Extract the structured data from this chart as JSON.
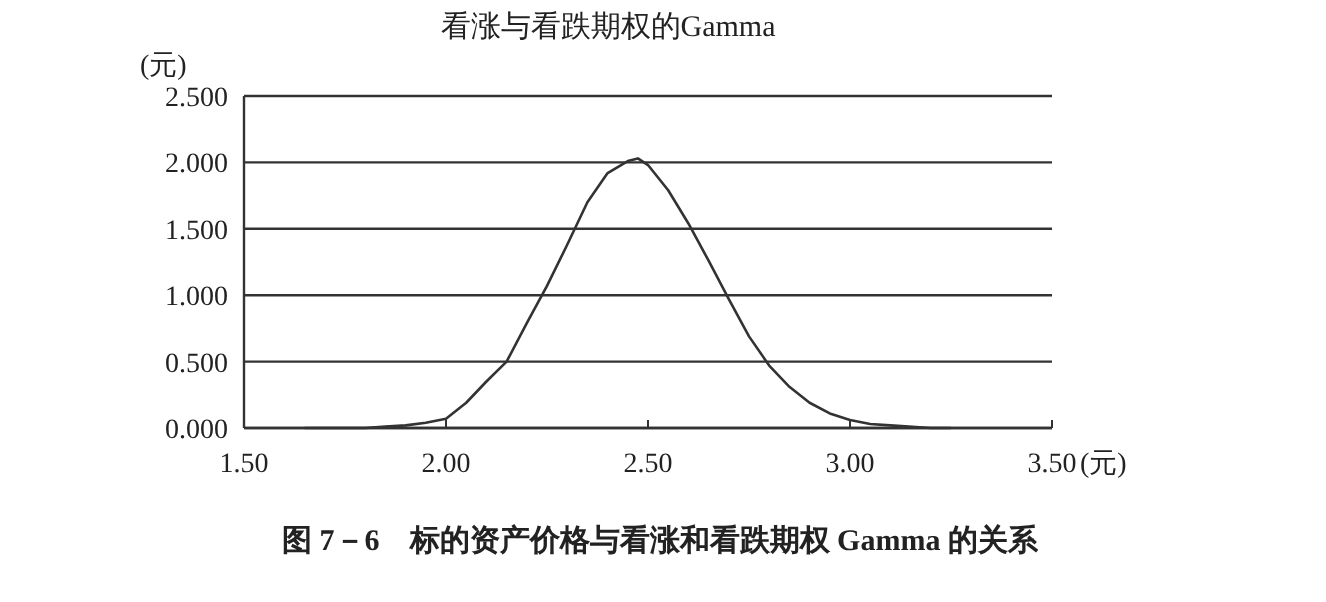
{
  "chart_data": {
    "type": "line",
    "title": "看涨与看跌期权的Gamma",
    "ylabel": "(元)",
    "xlabel": "(元)",
    "x": [
      1.65,
      1.8,
      1.85,
      1.9,
      1.95,
      2.0,
      2.05,
      2.1,
      2.15,
      2.2,
      2.25,
      2.3,
      2.35,
      2.4,
      2.45,
      2.475,
      2.5,
      2.55,
      2.6,
      2.65,
      2.7,
      2.75,
      2.8,
      2.85,
      2.9,
      2.95,
      3.0,
      3.05,
      3.1,
      3.2,
      3.25
    ],
    "series": [
      {
        "color": "#333333",
        "values": [
          0,
          0,
          0.01,
          0.02,
          0.04,
          0.07,
          0.19,
          0.35,
          0.5,
          0.79,
          1.07,
          1.38,
          1.7,
          1.92,
          2.01,
          2.03,
          1.98,
          1.79,
          1.54,
          1.26,
          0.97,
          0.69,
          0.47,
          0.31,
          0.19,
          0.11,
          0.06,
          0.03,
          0.02,
          0,
          0
        ]
      }
    ],
    "xlim": [
      1.5,
      3.5
    ],
    "xticks": [
      {
        "value": 1.5,
        "label": "1.50"
      },
      {
        "value": 2.0,
        "label": "2.00"
      },
      {
        "value": 2.5,
        "label": "2.50"
      },
      {
        "value": 3.0,
        "label": "3.00"
      },
      {
        "value": 3.5,
        "label": "3.50"
      }
    ],
    "ylim": [
      0,
      2.5
    ],
    "yticks": [
      {
        "value": 0,
        "label": "0.000"
      },
      {
        "value": 0.5,
        "label": "0.500"
      },
      {
        "value": 1,
        "label": "1.000"
      },
      {
        "value": 1.5,
        "label": "1.500"
      },
      {
        "value": 2,
        "label": "2.000"
      },
      {
        "value": 2.5,
        "label": "2.500"
      }
    ],
    "grid": "y",
    "marker": "none",
    "line_style": "solid",
    "annotations": [
      "图 7－6　标的资产价格与看涨和看跌期权 Gamma 的关系"
    ]
  }
}
